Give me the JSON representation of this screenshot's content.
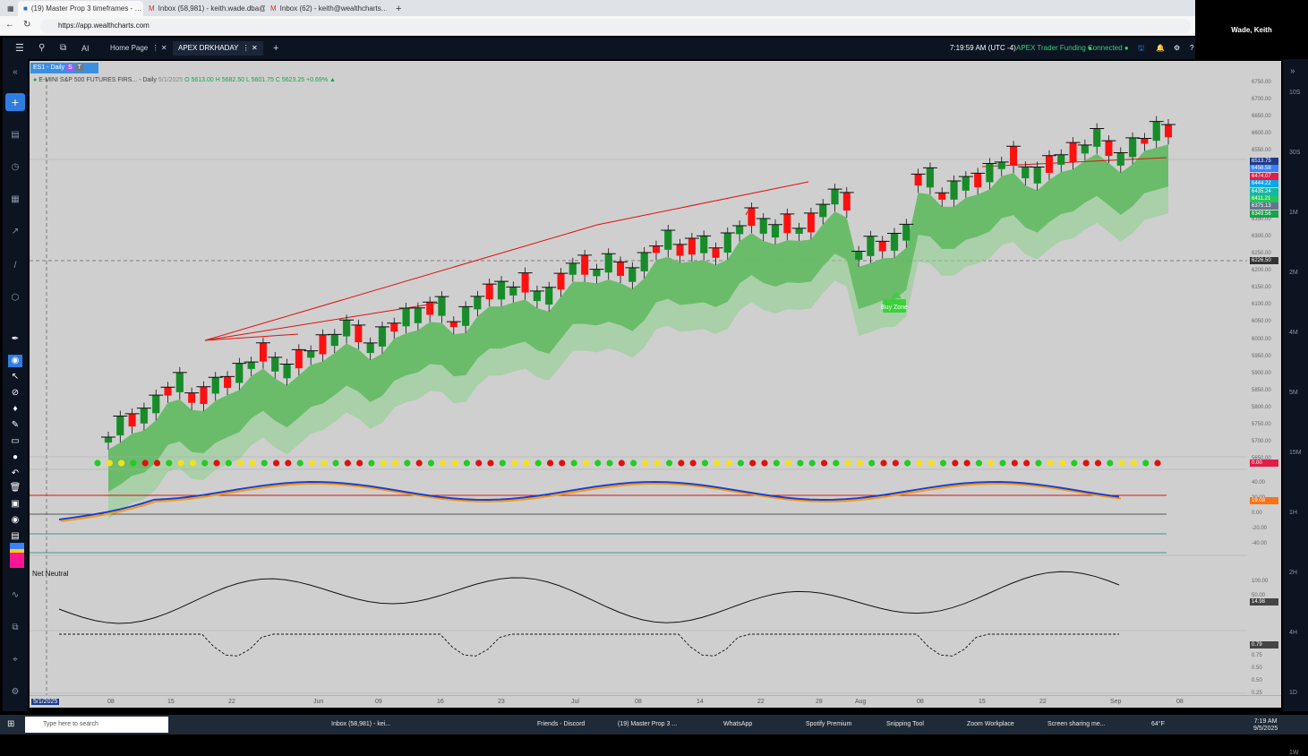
{
  "browser": {
    "tabs": [
      {
        "label": "(19) Master Prop 3 timeframes - …",
        "active": true
      },
      {
        "label": "Inbox (58,981) - keith.wade.dba@…",
        "active": false
      },
      {
        "label": "Inbox (62) - keith@wealthcharts.…",
        "active": false
      }
    ],
    "url": "https://app.wealthcharts.com",
    "zoom_user": "Wade, Keith"
  },
  "app": {
    "tabs": [
      {
        "label": "Home Page"
      },
      {
        "label": "APEX DRKHADAY"
      }
    ],
    "time": "7:19:59 AM",
    "tz": "(UTC -4)",
    "funding": "APEX Trader Funding",
    "connection": "Connected"
  },
  "symbol": {
    "tag": "ES1 - Daily",
    "title": "E-MINI S&P 500 FUTURES FIRS... - Daily",
    "date": "5/1/2025",
    "open": "O 5613.00",
    "high": "H 5682.50",
    "low": "L 5601.75",
    "close": "C 5623.25",
    "change": "+0.69%"
  },
  "price_axis": [
    "6750.00",
    "6700.00",
    "6650.00",
    "6600.00",
    "6550.00",
    "6500.00",
    "6450.00",
    "6400.00",
    "6350.00",
    "6300.00",
    "6250.00",
    "6200.00",
    "6150.00",
    "6100.00",
    "6050.00",
    "6000.00",
    "5950.00",
    "5900.00",
    "5850.00",
    "5800.00",
    "5750.00",
    "5700.00",
    "5650.00"
  ],
  "price_tags": [
    {
      "value": "6513.75",
      "color": "#1e3a8a"
    },
    {
      "value": "6458.58",
      "color": "#3b82f6"
    },
    {
      "value": "6474.07",
      "color": "#e11d48"
    },
    {
      "value": "6444.22",
      "color": "#0ea5e9"
    },
    {
      "value": "6435.24",
      "color": "#14b8a6"
    },
    {
      "value": "6411.21",
      "color": "#22c55e"
    },
    {
      "value": "6375.13",
      "color": "#64748b"
    },
    {
      "value": "6349.56",
      "color": "#16a34a"
    }
  ],
  "crosshair_price": "6226.50",
  "annotation": "Buy Zone",
  "panels": {
    "dots_value": "0.00",
    "osc_axis": [
      "40.00",
      "20.00",
      "0.00",
      "-20.00",
      "-40.00"
    ],
    "osc_value": "19.03",
    "net_label": "Net Neutral",
    "net_axis": [
      "100.00",
      "50.00"
    ],
    "net_value": "14.98",
    "bottom_axis": [
      "0.75",
      "0.50",
      "0.50",
      "0.25"
    ],
    "bottom_value": "0.79"
  },
  "x_axis": {
    "start": "5/1/2025",
    "labels": [
      "08",
      "15",
      "22",
      "Jun",
      "09",
      "16",
      "23",
      "Jul",
      "08",
      "14",
      "22",
      "28",
      "Aug",
      "08",
      "15",
      "22",
      "Sep",
      "08"
    ]
  },
  "timeframes": [
    "10S",
    "30S",
    "1M",
    "2M",
    "4M",
    "5M",
    "15M",
    "1H",
    "2H",
    "4H",
    "1D",
    "1W"
  ],
  "taskbar": {
    "search": "Type here to search",
    "apps": [
      "Inbox (58,981) - kei...",
      "Friends - Discord",
      "(19) Master Prop 3 ...",
      "WhatsApp",
      "Spotify Premium",
      "Snipping Tool",
      "Zoom Workplace",
      "Screen sharing me..."
    ],
    "weather": "64°F",
    "clock": "7:19 AM",
    "date": "9/5/2025"
  },
  "colors": {
    "bull": "#1a8a2a",
    "bear": "#ff1010",
    "cloud": "#5fb85f",
    "bg": "#cfcfcf"
  }
}
